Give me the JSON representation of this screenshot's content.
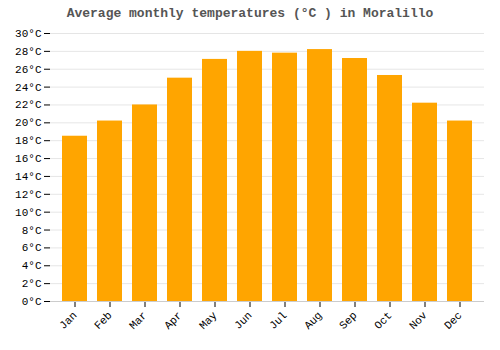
{
  "chart_data": {
    "type": "bar",
    "title": "Average monthly temperatures (°C ) in Moralillo",
    "categories": [
      "Jan",
      "Feb",
      "Mar",
      "Apr",
      "May",
      "Jun",
      "Jul",
      "Aug",
      "Sep",
      "Oct",
      "Nov",
      "Dec"
    ],
    "values": [
      18.5,
      20.2,
      22.0,
      25.0,
      27.1,
      28.0,
      27.8,
      28.2,
      27.2,
      25.3,
      22.2,
      20.2
    ],
    "color": "#FFA500",
    "ylim": [
      0,
      30
    ],
    "yticks": [
      {
        "value": 0,
        "label": "0°C"
      },
      {
        "value": 2,
        "label": "2°C"
      },
      {
        "value": 4,
        "label": "4°C"
      },
      {
        "value": 6,
        "label": "6°C"
      },
      {
        "value": 8,
        "label": "8°C"
      },
      {
        "value": 10,
        "label": "10°C"
      },
      {
        "value": 12,
        "label": "12°C"
      },
      {
        "value": 14,
        "label": "14°C"
      },
      {
        "value": 16,
        "label": "16°C"
      },
      {
        "value": 18,
        "label": "18°C"
      },
      {
        "value": 20,
        "label": "20°C"
      },
      {
        "value": 22,
        "label": "22°C"
      },
      {
        "value": 24,
        "label": "24°C"
      },
      {
        "value": 26,
        "label": "26°C"
      },
      {
        "value": 28,
        "label": "28°C"
      },
      {
        "value": 30,
        "label": "30°C"
      }
    ],
    "grid": true
  }
}
